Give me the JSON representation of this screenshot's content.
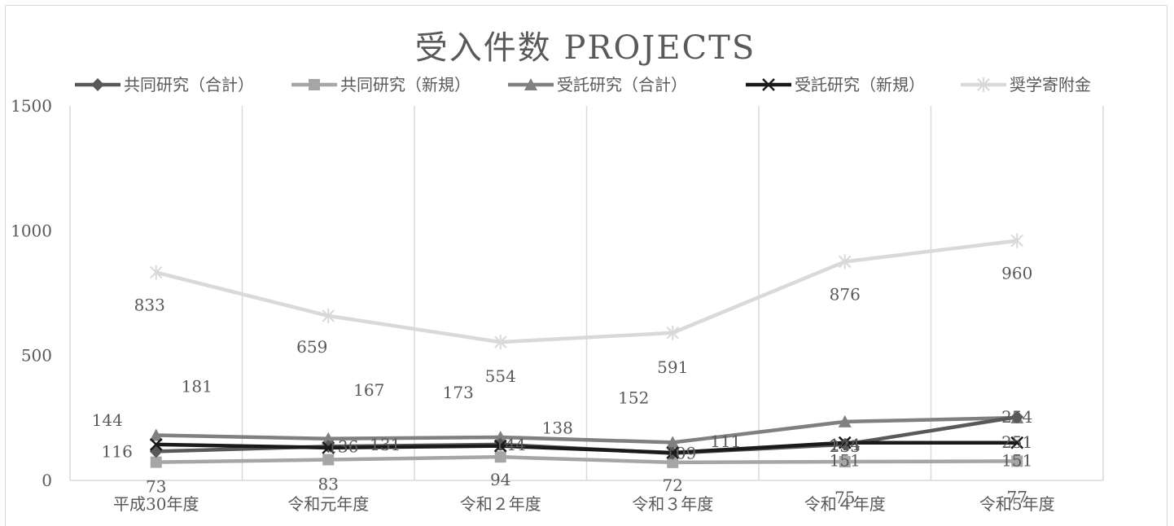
{
  "chart_data": {
    "type": "line",
    "title": "受入件数 PROJECTS",
    "categories": [
      "平成30年度",
      "令和元年度",
      "令和２年度",
      "令和３年度",
      "令和４年度",
      "令和5年度"
    ],
    "ylim": [
      0,
      1500
    ],
    "yticks": [
      "0",
      "500",
      "1000",
      "1500"
    ],
    "grid": "vertical",
    "legend_position": "top",
    "series": [
      {
        "name": "共同研究（合計）",
        "values": [
          116,
          136,
          144,
          109,
          144,
          254
        ],
        "labels": [
          "116",
          "136",
          "144",
          "109",
          "144",
          "254"
        ],
        "color": "#595959",
        "marker": "diamond"
      },
      {
        "name": "共同研究（新規）",
        "values": [
          73,
          83,
          94,
          72,
          75,
          77
        ],
        "labels": [
          "73",
          "83",
          "94",
          "72",
          "75",
          "77"
        ],
        "color": "#a6a6a6",
        "marker": "square"
      },
      {
        "name": "受託研究（合計）",
        "values": [
          181,
          167,
          173,
          152,
          235,
          251
        ],
        "labels": [
          "181",
          "167",
          "173",
          "152",
          "235",
          "251"
        ],
        "color": "#808080",
        "marker": "triangle"
      },
      {
        "name": "受託研究（新規）",
        "values": [
          144,
          131,
          138,
          111,
          151,
          151
        ],
        "labels": [
          "144",
          "131",
          "138",
          "111",
          "151",
          "151"
        ],
        "color": "#1a1a1a",
        "marker": "x"
      },
      {
        "name": "奨学寄附金",
        "values": [
          833,
          659,
          554,
          591,
          876,
          960
        ],
        "labels": [
          "833",
          "659",
          "554",
          "591",
          "876",
          "960"
        ],
        "color": "#d9d9d9",
        "marker": "star"
      }
    ]
  }
}
